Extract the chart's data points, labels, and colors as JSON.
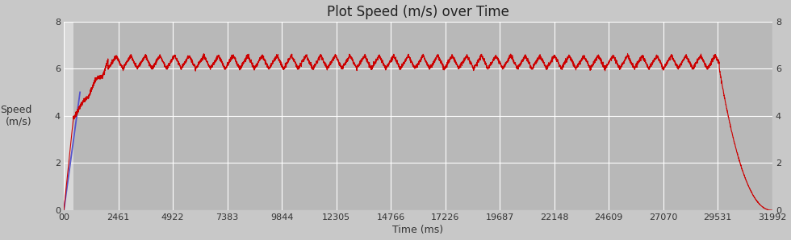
{
  "title": "Plot Speed (m/s) over Time",
  "xlabel": "Time (ms)",
  "ylabel": "Speed\n(m/s)",
  "xlim": [
    0,
    31992
  ],
  "ylim": [
    0,
    8
  ],
  "yticks": [
    0,
    2,
    4,
    6,
    8
  ],
  "xticks": [
    0,
    2461,
    4922,
    7383,
    9844,
    12305,
    14766,
    17226,
    19687,
    22148,
    24609,
    27070,
    29531,
    31992
  ],
  "xtick_labels": [
    "00",
    "2461",
    "4922",
    "7383",
    "9844",
    "12305",
    "14766",
    "17226",
    "19687",
    "22148",
    "24609",
    "27070",
    "29531",
    "31992"
  ],
  "fig_bg_color": "#c8c8c8",
  "plot_bg_color": "#b8b8b8",
  "pre_bg_color": "#d8d8d8",
  "line_color_red": "#cc0000",
  "line_color_blue": "#5555cc",
  "title_fontsize": 12,
  "axis_label_fontsize": 9,
  "tick_fontsize": 8,
  "total_time": 31992,
  "track_start_ms": 430,
  "cruise_speed_base": 6.0,
  "cruise_speed_top": 6.6,
  "osc_half_period_ms": 330,
  "decel_start_ms": 29600,
  "accel_end_ms": 2000
}
